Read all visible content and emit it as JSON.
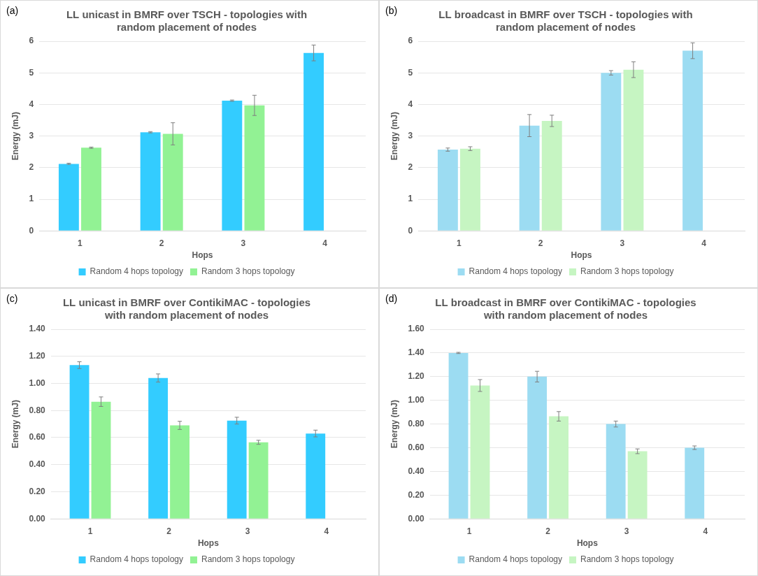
{
  "chart_data": [
    {
      "type": "bar",
      "annotation": "(a)",
      "title": "LL unicast in BMRF over TSCH - topologies with random placement of nodes",
      "x_label": "Hops",
      "y_label": "Energy (mJ)",
      "categories": [
        1,
        2,
        3,
        4
      ],
      "series": [
        {
          "name": "Random 4 hops topology",
          "color": "#33ccff",
          "values": [
            2.12,
            3.12,
            4.12,
            5.63
          ],
          "errors": [
            0.02,
            0.02,
            0.02,
            0.25
          ]
        },
        {
          "name": "Random 3 hops topology",
          "color": "#92f294",
          "values": [
            2.63,
            3.07,
            3.97,
            null
          ],
          "errors": [
            0.02,
            0.35,
            0.32,
            null
          ]
        }
      ],
      "ylim": [
        0,
        6
      ],
      "yticks": [
        0,
        1,
        2,
        3,
        4,
        5,
        6
      ],
      "grid": true,
      "legend": "bottom"
    },
    {
      "type": "bar",
      "annotation": "(b)",
      "title": "LL broadcast in BMRF over TSCH - topologies with random placement of nodes",
      "x_label": "Hops",
      "y_label": "Energy (mJ)",
      "categories": [
        1,
        2,
        3,
        4
      ],
      "series": [
        {
          "name": "Random 4 hops topology",
          "color": "#9cdcf2",
          "values": [
            2.57,
            3.33,
            5.0,
            5.7
          ],
          "errors": [
            0.05,
            0.35,
            0.07,
            0.25
          ]
        },
        {
          "name": "Random 3 hops topology",
          "color": "#c6f5c2",
          "values": [
            2.6,
            3.48,
            5.1,
            null
          ],
          "errors": [
            0.06,
            0.18,
            0.25,
            null
          ]
        }
      ],
      "ylim": [
        0,
        6
      ],
      "yticks": [
        0,
        1,
        2,
        3,
        4,
        5,
        6
      ],
      "grid": true,
      "legend": "bottom"
    },
    {
      "type": "bar",
      "annotation": "(c)",
      "title": "LL unicast in BMRF over ContikiMAC - topologies with random placement of nodes",
      "x_label": "Hops",
      "y_label": "Energy (mJ)",
      "categories": [
        1,
        2,
        3,
        4
      ],
      "series": [
        {
          "name": "Random 4 hops topology",
          "color": "#33ccff",
          "values": [
            1.135,
            1.04,
            0.725,
            0.63
          ],
          "errors": [
            0.025,
            0.03,
            0.025,
            0.025
          ]
        },
        {
          "name": "Random 3 hops topology",
          "color": "#92f294",
          "values": [
            0.865,
            0.69,
            0.565,
            null
          ],
          "errors": [
            0.035,
            0.03,
            0.015,
            null
          ]
        }
      ],
      "ylim": [
        0,
        1.4
      ],
      "yticks": [
        {
          "value": 0,
          "label": "0.00"
        },
        {
          "value": 0.2,
          "label": "0.20"
        },
        {
          "value": 0.4,
          "label": "0.40"
        },
        {
          "value": 0.6,
          "label": "0.60"
        },
        {
          "value": 0.8,
          "label": "0.80"
        },
        {
          "value": 1,
          "label": "1.00"
        },
        {
          "value": 1.2,
          "label": "1.20"
        },
        {
          "value": 1.4,
          "label": "1.40"
        }
      ],
      "grid": true,
      "legend": "bottom"
    },
    {
      "type": "bar",
      "annotation": "(d)",
      "title": "LL broadcast in BMRF over ContikiMAC - topologies with random placement of nodes",
      "x_label": "Hops",
      "y_label": "Energy (mJ)",
      "categories": [
        1,
        2,
        3,
        4
      ],
      "series": [
        {
          "name": "Random 4 hops topology",
          "color": "#9cdcf2",
          "values": [
            1.4,
            1.2,
            0.8,
            0.6
          ],
          "errors": [
            0.005,
            0.045,
            0.025,
            0.015
          ]
        },
        {
          "name": "Random 3 hops topology",
          "color": "#c6f5c2",
          "values": [
            1.125,
            0.865,
            0.57,
            null
          ],
          "errors": [
            0.05,
            0.04,
            0.02,
            null
          ]
        }
      ],
      "ylim": [
        0,
        1.6
      ],
      "yticks": [
        {
          "value": 0,
          "label": "0.00"
        },
        {
          "value": 0.2,
          "label": "0.20"
        },
        {
          "value": 0.4,
          "label": "0.40"
        },
        {
          "value": 0.6,
          "label": "0.60"
        },
        {
          "value": 0.8,
          "label": "0.80"
        },
        {
          "value": 1,
          "label": "1.00"
        },
        {
          "value": 1.2,
          "label": "1.20"
        },
        {
          "value": 1.4,
          "label": "1.40"
        },
        {
          "value": 1.6,
          "label": "1.60"
        }
      ],
      "grid": true,
      "legend": "bottom"
    }
  ]
}
